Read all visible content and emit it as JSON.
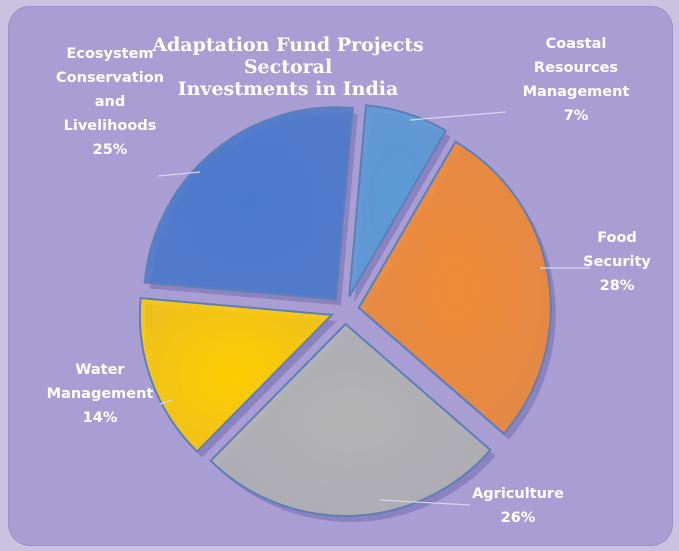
{
  "chart_data": {
    "type": "pie",
    "title_lines": [
      "Adaptation Fund Projects Sectoral",
      "Investments in India"
    ],
    "slices": [
      {
        "label_lines": [
          "Coastal",
          "Resources",
          "Management"
        ],
        "pct_label": "7%",
        "value": 7,
        "color": "#5b9ad6"
      },
      {
        "label_lines": [
          "Food",
          "Security"
        ],
        "pct_label": "28%",
        "value": 28,
        "color": "#f08a34"
      },
      {
        "label_lines": [
          "Agriculture"
        ],
        "pct_label": "26%",
        "value": 26,
        "color": "#b3b3b3"
      },
      {
        "label_lines": [
          "Water",
          "Management"
        ],
        "pct_label": "14%",
        "value": 14,
        "color": "#ffcc00"
      },
      {
        "label_lines": [
          "Ecosystem",
          "Conservation",
          "and",
          "Livelihoods"
        ],
        "pct_label": "25%",
        "value": 25,
        "color": "#4a79cc"
      }
    ]
  }
}
